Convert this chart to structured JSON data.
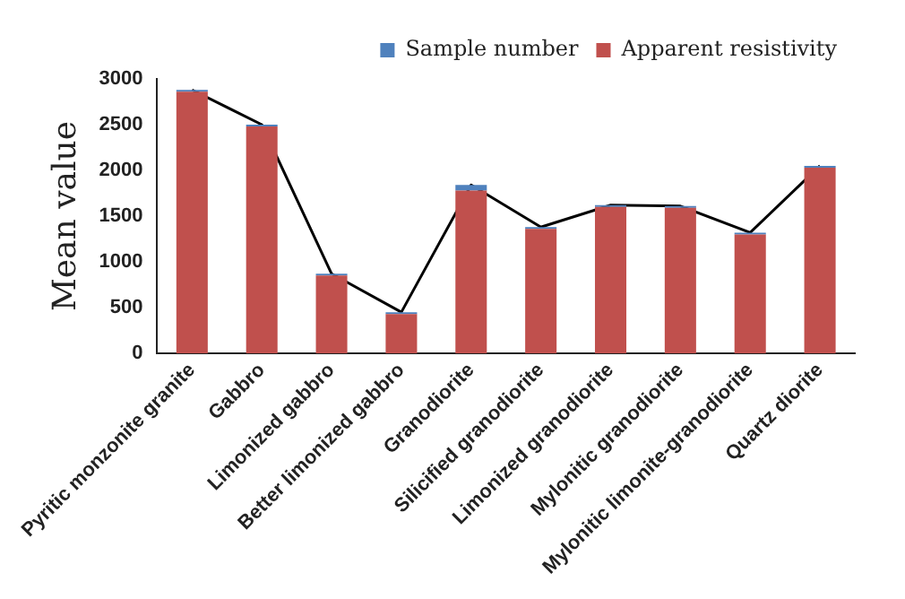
{
  "chart_data": {
    "type": "bar",
    "stacked": true,
    "ylabel": "Mean value",
    "categories": [
      "Pyritic monzonite granite",
      "Gabbro",
      "Limonized gabbro",
      "Better limonized gabbro",
      "Granodiorite",
      "Silicified granodiorite",
      "Limonized granodiorite",
      "Mylonitic granodiorite",
      "Mylonitic limonite-granodiorite",
      "Quartz diorite"
    ],
    "series": [
      {
        "name": "Apparent resistivity",
        "color": "#c0504d",
        "values": [
          2860,
          2480,
          850,
          430,
          1780,
          1360,
          1600,
          1590,
          1300,
          2030
        ]
      },
      {
        "name": "Sample number",
        "color": "#4f81bd",
        "values": [
          20,
          20,
          20,
          20,
          60,
          20,
          20,
          20,
          20,
          20
        ]
      },
      {
        "type": "line",
        "color": "#000000",
        "values": [
          2880,
          2500,
          870,
          450,
          1840,
          1380,
          1620,
          1610,
          1320,
          2050
        ]
      }
    ],
    "ylim": [
      0,
      3000
    ],
    "yticks": [
      0,
      500,
      1000,
      1500,
      2000,
      2500,
      3000
    ],
    "grid": false,
    "legend": "top right",
    "marker": "none"
  }
}
